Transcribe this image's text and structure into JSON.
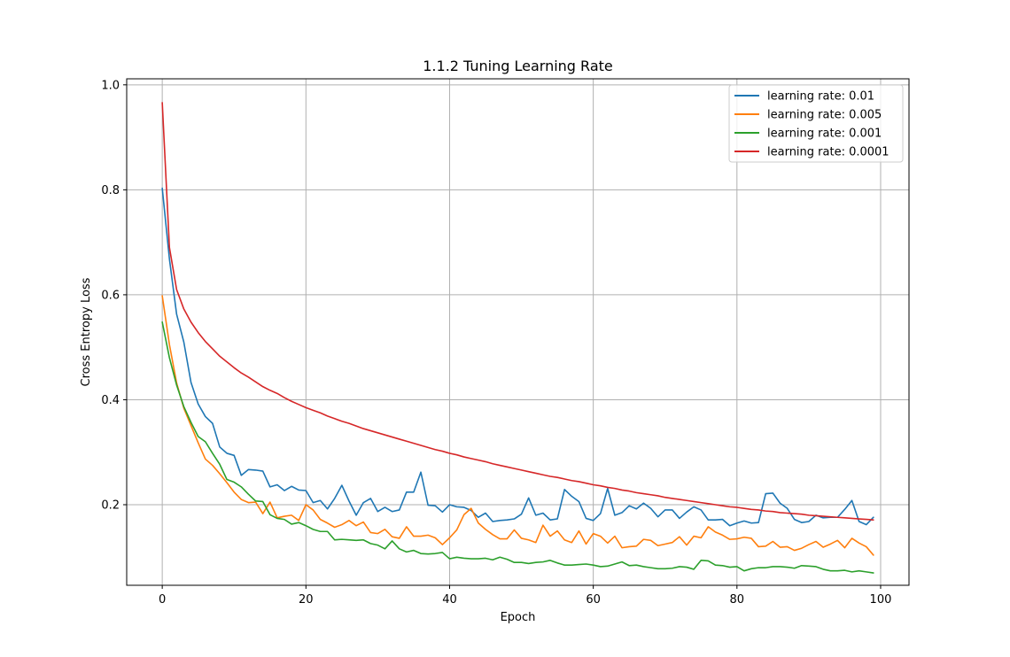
{
  "chart_data": {
    "type": "line",
    "title": "1.1.2 Tuning Learning Rate",
    "xlabel": "Epoch",
    "ylabel": "Cross Entropy Loss",
    "xlim": [
      -4.95,
      103.95
    ],
    "ylim": [
      0.0465,
      1.0115
    ],
    "xticks": [
      0,
      20,
      40,
      60,
      80,
      100
    ],
    "yticks": [
      0.2,
      0.4,
      0.6,
      0.8,
      1.0
    ],
    "xtick_labels": [
      "0",
      "20",
      "40",
      "60",
      "80",
      "100"
    ],
    "ytick_labels": [
      "0.2",
      "0.4",
      "0.6",
      "0.8",
      "1.0"
    ],
    "grid": true,
    "legend_position": "top-right",
    "series": [
      {
        "name": "learning rate: 0.01",
        "color": "#1f77b4",
        "values": [
          0.803,
          0.668,
          0.563,
          0.51,
          0.433,
          0.392,
          0.368,
          0.355,
          0.31,
          0.298,
          0.294,
          0.256,
          0.267,
          0.266,
          0.264,
          0.234,
          0.238,
          0.227,
          0.235,
          0.228,
          0.227,
          0.204,
          0.208,
          0.192,
          0.212,
          0.237,
          0.207,
          0.18,
          0.204,
          0.212,
          0.187,
          0.195,
          0.187,
          0.19,
          0.224,
          0.224,
          0.262,
          0.199,
          0.198,
          0.186,
          0.2,
          0.196,
          0.195,
          0.189,
          0.176,
          0.184,
          0.168,
          0.17,
          0.171,
          0.173,
          0.182,
          0.213,
          0.18,
          0.184,
          0.171,
          0.173,
          0.229,
          0.216,
          0.206,
          0.174,
          0.17,
          0.183,
          0.231,
          0.18,
          0.185,
          0.198,
          0.192,
          0.203,
          0.193,
          0.177,
          0.19,
          0.19,
          0.174,
          0.186,
          0.196,
          0.19,
          0.171,
          0.171,
          0.172,
          0.16,
          0.165,
          0.169,
          0.165,
          0.166,
          0.221,
          0.222,
          0.203,
          0.193,
          0.172,
          0.166,
          0.168,
          0.18,
          0.175,
          0.176,
          0.176,
          0.191,
          0.208,
          0.168,
          0.162,
          0.176
        ]
      },
      {
        "name": "learning rate: 0.005",
        "color": "#ff7f0e",
        "values": [
          0.598,
          0.505,
          0.432,
          0.384,
          0.351,
          0.318,
          0.287,
          0.275,
          0.259,
          0.242,
          0.224,
          0.21,
          0.204,
          0.205,
          0.183,
          0.205,
          0.175,
          0.178,
          0.18,
          0.17,
          0.2,
          0.19,
          0.172,
          0.165,
          0.157,
          0.162,
          0.17,
          0.16,
          0.167,
          0.147,
          0.145,
          0.153,
          0.139,
          0.136,
          0.158,
          0.14,
          0.14,
          0.142,
          0.137,
          0.124,
          0.137,
          0.152,
          0.181,
          0.193,
          0.165,
          0.153,
          0.143,
          0.135,
          0.135,
          0.152,
          0.136,
          0.133,
          0.128,
          0.161,
          0.14,
          0.15,
          0.133,
          0.128,
          0.15,
          0.125,
          0.145,
          0.14,
          0.127,
          0.14,
          0.118,
          0.12,
          0.121,
          0.134,
          0.132,
          0.122,
          0.125,
          0.128,
          0.139,
          0.123,
          0.14,
          0.137,
          0.158,
          0.148,
          0.142,
          0.134,
          0.135,
          0.138,
          0.136,
          0.12,
          0.121,
          0.13,
          0.119,
          0.12,
          0.113,
          0.117,
          0.124,
          0.13,
          0.119,
          0.125,
          0.132,
          0.118,
          0.136,
          0.127,
          0.12,
          0.104
        ]
      },
      {
        "name": "learning rate: 0.001",
        "color": "#2ca02c",
        "values": [
          0.548,
          0.48,
          0.428,
          0.387,
          0.357,
          0.33,
          0.32,
          0.298,
          0.277,
          0.248,
          0.243,
          0.234,
          0.22,
          0.207,
          0.206,
          0.181,
          0.174,
          0.172,
          0.163,
          0.166,
          0.16,
          0.153,
          0.149,
          0.149,
          0.133,
          0.134,
          0.133,
          0.132,
          0.133,
          0.126,
          0.123,
          0.116,
          0.131,
          0.116,
          0.11,
          0.113,
          0.107,
          0.106,
          0.107,
          0.109,
          0.097,
          0.1,
          0.098,
          0.097,
          0.097,
          0.098,
          0.095,
          0.1,
          0.096,
          0.09,
          0.09,
          0.088,
          0.09,
          0.091,
          0.094,
          0.089,
          0.085,
          0.085,
          0.086,
          0.087,
          0.085,
          0.082,
          0.083,
          0.087,
          0.091,
          0.084,
          0.085,
          0.082,
          0.08,
          0.078,
          0.078,
          0.079,
          0.082,
          0.081,
          0.077,
          0.094,
          0.093,
          0.085,
          0.084,
          0.081,
          0.082,
          0.074,
          0.078,
          0.08,
          0.08,
          0.082,
          0.082,
          0.081,
          0.079,
          0.084,
          0.083,
          0.082,
          0.077,
          0.074,
          0.074,
          0.075,
          0.072,
          0.074,
          0.072,
          0.07
        ]
      },
      {
        "name": "learning rate: 0.0001",
        "color": "#d62728",
        "values": [
          0.966,
          0.69,
          0.61,
          0.573,
          0.548,
          0.528,
          0.511,
          0.497,
          0.483,
          0.472,
          0.461,
          0.451,
          0.443,
          0.434,
          0.425,
          0.418,
          0.412,
          0.404,
          0.397,
          0.391,
          0.385,
          0.38,
          0.375,
          0.369,
          0.364,
          0.359,
          0.355,
          0.35,
          0.345,
          0.341,
          0.337,
          0.333,
          0.329,
          0.325,
          0.321,
          0.317,
          0.313,
          0.309,
          0.305,
          0.302,
          0.298,
          0.295,
          0.291,
          0.288,
          0.285,
          0.282,
          0.278,
          0.275,
          0.272,
          0.269,
          0.266,
          0.263,
          0.26,
          0.257,
          0.254,
          0.252,
          0.249,
          0.246,
          0.244,
          0.241,
          0.238,
          0.236,
          0.233,
          0.231,
          0.228,
          0.226,
          0.223,
          0.221,
          0.219,
          0.217,
          0.214,
          0.212,
          0.21,
          0.208,
          0.206,
          0.204,
          0.202,
          0.2,
          0.198,
          0.196,
          0.195,
          0.193,
          0.191,
          0.19,
          0.188,
          0.187,
          0.185,
          0.184,
          0.183,
          0.182,
          0.18,
          0.179,
          0.178,
          0.177,
          0.176,
          0.175,
          0.174,
          0.173,
          0.172,
          0.171
        ]
      }
    ]
  }
}
